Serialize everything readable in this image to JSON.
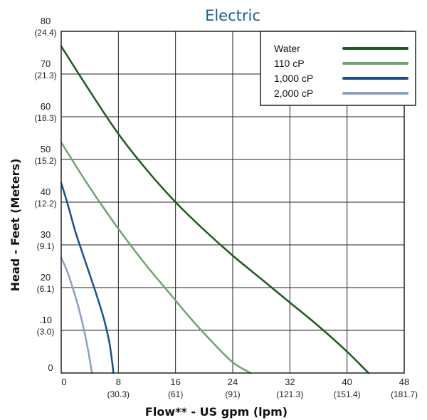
{
  "chart_data": {
    "type": "line",
    "title": "Electric",
    "xlabel": "Flow** - US gpm (lpm)",
    "ylabel": "Head - Feet (Meters)",
    "xlim": [
      0,
      48
    ],
    "ylim": [
      0,
      80
    ],
    "grid": true,
    "legend_position": "top-right",
    "x_ticks": [
      {
        "value": 0,
        "label": "0",
        "sub": ""
      },
      {
        "value": 8,
        "label": "8",
        "sub": "(30.3)"
      },
      {
        "value": 16,
        "label": "16",
        "sub": "(61)"
      },
      {
        "value": 24,
        "label": "24",
        "sub": "(91)"
      },
      {
        "value": 32,
        "label": "32",
        "sub": "(121.3)"
      },
      {
        "value": 40,
        "label": "40",
        "sub": "(151.4)"
      },
      {
        "value": 48,
        "label": "48",
        "sub": "(181.7)"
      }
    ],
    "y_ticks": [
      {
        "value": 0,
        "label": "0",
        "sub": ""
      },
      {
        "value": 10,
        "label": ".10",
        "sub": "(3.0)"
      },
      {
        "value": 20,
        "label": "20",
        "sub": "(6.1)"
      },
      {
        "value": 30,
        "label": "30",
        "sub": "(9.1)"
      },
      {
        "value": 40,
        "label": "40",
        "sub": "(12.2)"
      },
      {
        "value": 50,
        "label": "50",
        "sub": "(15.2)"
      },
      {
        "value": 60,
        "label": "60",
        "sub": "(18.3)"
      },
      {
        "value": 70,
        "label": "70",
        "sub": "(21.3)"
      },
      {
        "value": 80,
        "label": "80",
        "sub": "(24.4)"
      }
    ],
    "series": [
      {
        "name": "Water",
        "color": "#1e5a1e",
        "points": [
          [
            0,
            76.5
          ],
          [
            4,
            66
          ],
          [
            8,
            56
          ],
          [
            12,
            47.5
          ],
          [
            16,
            40
          ],
          [
            20,
            33.5
          ],
          [
            24,
            27.5
          ],
          [
            28,
            22
          ],
          [
            32,
            16.5
          ],
          [
            36,
            11
          ],
          [
            40,
            5
          ],
          [
            43,
            0
          ]
        ]
      },
      {
        "name": "110 cP",
        "color": "#6ea56e",
        "points": [
          [
            0,
            54
          ],
          [
            3,
            46
          ],
          [
            6,
            38.5
          ],
          [
            9,
            31.5
          ],
          [
            12,
            25
          ],
          [
            15,
            19
          ],
          [
            18,
            13
          ],
          [
            21,
            7.5
          ],
          [
            24,
            2.5
          ],
          [
            26.5,
            0
          ]
        ]
      },
      {
        "name": "1,000 cP",
        "color": "#1a5088",
        "points": [
          [
            0,
            44.5
          ],
          [
            1,
            39
          ],
          [
            2,
            33
          ],
          [
            3,
            28
          ],
          [
            4,
            23
          ],
          [
            5,
            18
          ],
          [
            6,
            12.5
          ],
          [
            6.7,
            7.5
          ],
          [
            7.1,
            3
          ],
          [
            7.3,
            0
          ]
        ]
      },
      {
        "name": "2,000 cP",
        "color": "#8aa0c8",
        "points": [
          [
            0,
            27
          ],
          [
            0.8,
            24
          ],
          [
            1.6,
            20
          ],
          [
            2.4,
            15.5
          ],
          [
            3.2,
            10
          ],
          [
            3.8,
            5
          ],
          [
            4.3,
            0
          ]
        ]
      }
    ]
  }
}
